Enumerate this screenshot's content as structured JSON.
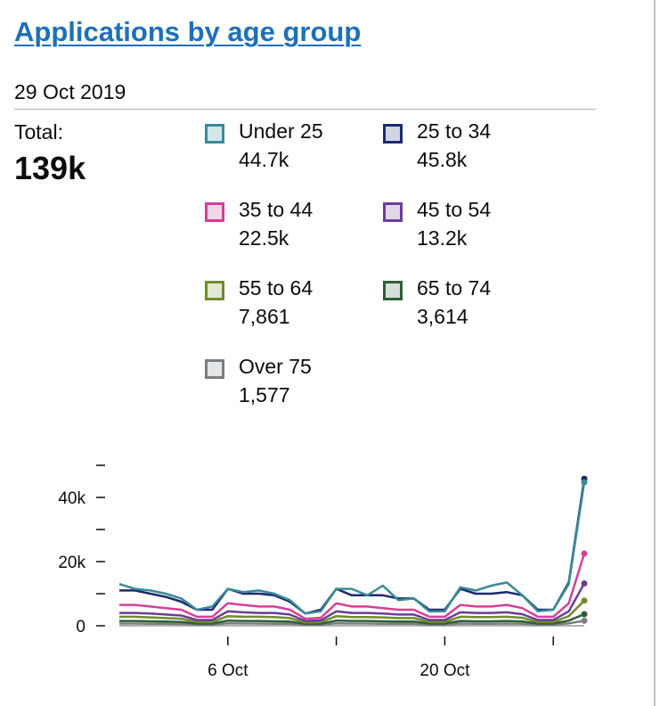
{
  "page": {
    "title": "Applications by age group",
    "date": "29 Oct 2019",
    "total_label": "Total:",
    "total_value": "139k"
  },
  "legend": [
    {
      "name": "Under 25",
      "value": "44.7k",
      "color": "#3a8a97",
      "fill": "#d4e6ea"
    },
    {
      "name": "25 to 34",
      "value": "45.8k",
      "color": "#1a2a6e",
      "fill": "#d1d4e2"
    },
    {
      "name": "35 to 44",
      "value": "22.5k",
      "color": "#d43f97",
      "fill": "#f6d5e7"
    },
    {
      "name": "45 to 54",
      "value": "13.2k",
      "color": "#6b3d97",
      "fill": "#e1d7ea"
    },
    {
      "name": "55 to 64",
      "value": "7,861",
      "color": "#6f8d2a",
      "fill": "#e2e8d4"
    },
    {
      "name": "65 to 74",
      "value": "3,614",
      "color": "#2e5e3a",
      "fill": "#d5dfd7"
    },
    {
      "name": "Over 75",
      "value": "1,577",
      "color": "#7a7d80",
      "fill": "#e4e5e6"
    }
  ],
  "chart_data": {
    "type": "line",
    "title": "Applications by age group",
    "xlabel": "",
    "ylabel": "",
    "ylim": [
      0,
      50000
    ],
    "y_ticks": [
      0,
      10000,
      20000,
      30000,
      40000,
      50000
    ],
    "y_tick_labels": [
      "0",
      "",
      "20k",
      "",
      "40k",
      ""
    ],
    "x_tick_labels": [
      {
        "index": 7,
        "label": "6 Oct"
      },
      {
        "index": 14,
        "label": ""
      },
      {
        "index": 21,
        "label": "20 Oct"
      },
      {
        "index": 28,
        "label": ""
      }
    ],
    "x": [
      "29 Sep",
      "30 Sep",
      "1 Oct",
      "2 Oct",
      "3 Oct",
      "4 Oct",
      "5 Oct",
      "6 Oct",
      "7 Oct",
      "8 Oct",
      "9 Oct",
      "10 Oct",
      "11 Oct",
      "12 Oct",
      "13 Oct",
      "14 Oct",
      "15 Oct",
      "16 Oct",
      "17 Oct",
      "18 Oct",
      "19 Oct",
      "20 Oct",
      "21 Oct",
      "22 Oct",
      "23 Oct",
      "24 Oct",
      "25 Oct",
      "26 Oct",
      "27 Oct",
      "28 Oct",
      "29 Oct"
    ],
    "series": [
      {
        "name": "Under 25",
        "color": "#3a8a97",
        "values": [
          13000,
          11500,
          11000,
          10000,
          8500,
          5000,
          6000,
          11500,
          10500,
          11000,
          10000,
          8000,
          3800,
          4500,
          11500,
          11500,
          9500,
          12500,
          8000,
          8500,
          4500,
          4500,
          12000,
          11000,
          12500,
          13500,
          9500,
          4500,
          5000,
          13000,
          44700
        ]
      },
      {
        "name": "25 to 34",
        "color": "#1a2a6e",
        "values": [
          11000,
          11000,
          10000,
          9000,
          7500,
          5000,
          5000,
          11500,
          10000,
          10000,
          9500,
          7500,
          3800,
          5000,
          11500,
          9500,
          9500,
          9500,
          8500,
          8500,
          5000,
          5000,
          11500,
          10000,
          10000,
          10500,
          9500,
          5000,
          5000,
          13500,
          45800
        ]
      },
      {
        "name": "35 to 44",
        "color": "#d43f97",
        "values": [
          6500,
          6500,
          6000,
          5500,
          5000,
          2800,
          2800,
          7000,
          6500,
          6000,
          6000,
          5000,
          2200,
          2500,
          7000,
          6000,
          6000,
          5500,
          5000,
          5000,
          2800,
          2800,
          6500,
          6000,
          6000,
          6500,
          5500,
          2800,
          2800,
          7000,
          22500
        ]
      },
      {
        "name": "45 to 54",
        "color": "#6b3d97",
        "values": [
          4000,
          4000,
          3800,
          3500,
          3200,
          1800,
          1800,
          4500,
          4200,
          4000,
          4000,
          3500,
          1500,
          1700,
          4500,
          4000,
          4000,
          3800,
          3500,
          3500,
          1800,
          1800,
          4200,
          4000,
          4000,
          4200,
          3600,
          1800,
          1800,
          4500,
          13200
        ]
      },
      {
        "name": "55 to 64",
        "color": "#6f8d2a",
        "values": [
          2800,
          2800,
          2600,
          2400,
          2200,
          1200,
          1200,
          3000,
          2800,
          2800,
          2700,
          2400,
          1000,
          1100,
          3000,
          2700,
          2700,
          2600,
          2400,
          2400,
          1200,
          1200,
          2800,
          2700,
          2700,
          2800,
          2500,
          1200,
          1200,
          3000,
          7861
        ]
      },
      {
        "name": "65 to 74",
        "color": "#2e5e3a",
        "values": [
          1500,
          1500,
          1400,
          1300,
          1200,
          700,
          700,
          1600,
          1500,
          1500,
          1400,
          1300,
          600,
          650,
          1600,
          1500,
          1500,
          1400,
          1300,
          1300,
          700,
          700,
          1500,
          1400,
          1400,
          1500,
          1350,
          700,
          700,
          1600,
          3614
        ]
      },
      {
        "name": "Over 75",
        "color": "#7a7d80",
        "values": [
          700,
          700,
          650,
          600,
          550,
          350,
          350,
          750,
          700,
          700,
          650,
          600,
          300,
          320,
          750,
          700,
          700,
          650,
          600,
          600,
          350,
          350,
          700,
          650,
          650,
          700,
          620,
          350,
          350,
          750,
          1577
        ]
      }
    ]
  }
}
